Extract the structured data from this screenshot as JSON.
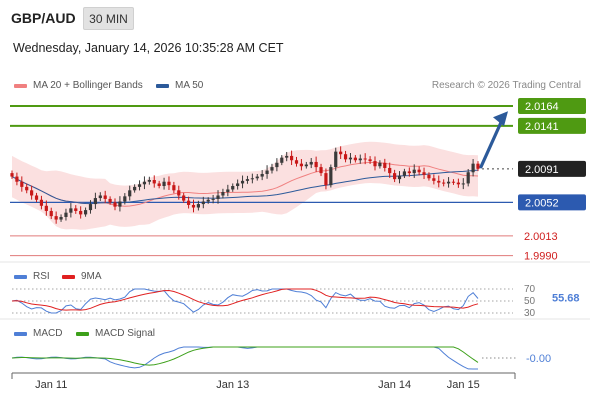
{
  "header": {
    "pair": "GBP/AUD",
    "timeframe": "30 MIN",
    "datetime": "Wednesday, January 14, 2026 10:35:28 AM CET"
  },
  "legend_main": [
    {
      "label": "MA 20 + Bollinger Bands",
      "color": "#f08080"
    },
    {
      "label": "MA 50",
      "color": "#2c5a9a"
    }
  ],
  "legend_rsi": [
    {
      "label": "RSI",
      "color": "#4f7fd6"
    },
    {
      "label": "9MA",
      "color": "#e02020"
    }
  ],
  "legend_macd": [
    {
      "label": "MACD",
      "color": "#4f7fd6"
    },
    {
      "label": "MACD Signal",
      "color": "#3da01a"
    }
  ],
  "credit": "Research © 2026 Trading Central",
  "colors": {
    "up": "#3a3a3a",
    "down": "#c81818",
    "bollinger_fill": "#fbe0e0",
    "resistance": "#4f9a12",
    "pivot": "#2c5ab0",
    "support": "#e07a7a",
    "arrow": "#2c5a9a"
  },
  "chart_data": {
    "type": "candlestick",
    "symbol": "GBP/AUD",
    "interval": "30 MIN",
    "x_tick_labels": [
      "Jan 11",
      "Jan 13",
      "Jan 14",
      "Jan 15"
    ],
    "y_range": [
      1.9978,
      2.0178
    ],
    "current_price": 2.0091,
    "levels": [
      {
        "value": 2.0164,
        "label": "2.0164",
        "kind": "resistance"
      },
      {
        "value": 2.0141,
        "label": "2.0141",
        "kind": "resistance"
      },
      {
        "value": 2.0052,
        "label": "2.0052",
        "kind": "pivot"
      },
      {
        "value": 2.0013,
        "label": "2.0013",
        "kind": "support"
      },
      {
        "value": 1.999,
        "label": "1.9990",
        "kind": "support"
      }
    ],
    "scenario_arrow": {
      "from": 2.0091,
      "to": 2.0158
    },
    "candles_close": [
      2.0082,
      2.0076,
      2.007,
      2.0066,
      2.006,
      2.0055,
      2.0048,
      2.0042,
      2.0036,
      2.0032,
      2.0035,
      2.004,
      2.0045,
      2.0042,
      2.0038,
      2.0043,
      2.005,
      2.0057,
      2.006,
      2.0056,
      2.0052,
      2.0047,
      2.0053,
      2.0059,
      2.0066,
      2.007,
      2.0073,
      2.0076,
      2.0078,
      2.0074,
      2.0071,
      2.0076,
      2.0072,
      2.0066,
      2.006,
      2.0054,
      2.0049,
      2.0046,
      2.005,
      2.0053,
      2.0055,
      2.0056,
      2.006,
      2.0064,
      2.0067,
      2.0071,
      2.0074,
      2.0077,
      2.0079,
      2.008,
      2.0082,
      2.0085,
      2.0089,
      2.0093,
      2.0098,
      2.0104,
      2.0106,
      2.0101,
      2.0097,
      2.0094,
      2.0096,
      2.0099,
      2.0093,
      2.0086,
      2.0072,
      2.0093,
      2.0111,
      2.0108,
      2.0102,
      2.0104,
      2.0101,
      2.0103,
      2.0102,
      2.01,
      2.0094,
      2.0098,
      2.0092,
      2.0086,
      2.0079,
      2.0083,
      2.0088,
      2.0086,
      2.009,
      2.0087,
      2.0084,
      2.008,
      2.0077,
      2.0075,
      2.0074,
      2.0076,
      2.0075,
      2.0073,
      2.0074,
      2.0087,
      2.0097,
      2.0091
    ],
    "rsi": {
      "range": [
        0,
        100
      ],
      "ticks": [
        70,
        50,
        30
      ],
      "current": 55.68,
      "current_label": "55.68"
    },
    "macd": {
      "current": -0.0,
      "current_label": "-0.00"
    }
  }
}
